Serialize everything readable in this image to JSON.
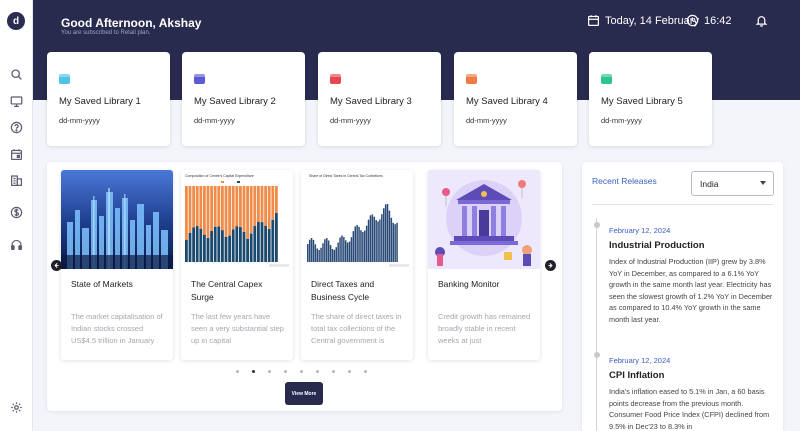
{
  "sidebar": {
    "logo": "d",
    "icons": [
      "search-icon",
      "monitor-icon",
      "help-icon",
      "calendar-icon",
      "building-icon",
      "dollar-icon",
      "headphones-icon",
      "settings-icon"
    ]
  },
  "header": {
    "greeting": "Good Afternoon, Akshay",
    "subtext": "You are subscribed to Retail plan.",
    "date": "Today, 14 February",
    "time": "16:42"
  },
  "libraries": [
    {
      "title": "My Saved Library 1",
      "date": "dd-mm-yyyy",
      "color": "#4fc3e8"
    },
    {
      "title": "My Saved Library 2",
      "date": "dd-mm-yyyy",
      "color": "#5b5bd6"
    },
    {
      "title": "My Saved Library 3",
      "date": "dd-mm-yyyy",
      "color": "#e8474f"
    },
    {
      "title": "My Saved Library 4",
      "date": "dd-mm-yyyy",
      "color": "#ef7a45"
    },
    {
      "title": "My Saved Library 5",
      "date": "dd-mm-yyyy",
      "color": "#2dc58a"
    }
  ],
  "carousel": {
    "articles": [
      {
        "title": "State of Markets",
        "desc": "The market capitalisation of Indian stocks crossed US$4.5 trillion in January"
      },
      {
        "title": "The Central Capex Surge",
        "desc": "The last few years have seen a very substantial step up in capital"
      },
      {
        "title": "Direct Taxes and Business Cycle",
        "desc": "The share of direct taxes in total tax collections of the Central government is"
      },
      {
        "title": "Banking Monitor",
        "desc": "Credit growth has remained broadly stable in recent weeks at just"
      }
    ],
    "thumb_titles": [
      "Composition of Centre's Capital Expenditure",
      "Share of Direct Taxes in Central Tax Collections"
    ],
    "active_dot": 1,
    "dot_count": 9,
    "view_more": "View More"
  },
  "releases": {
    "heading": "Recent Releases",
    "country": "India",
    "items": [
      {
        "date": "February 12, 2024",
        "title": "Industrial Production",
        "body": "Index of Industrial Production (IIP) grew by 3.8% YoY in December, as compared to a 6.1% YoY growth in the same month last year. Electricity has seen the slowest growth of 1.2% YoY in December as compared to 10.4% YoY growth in the same month last year."
      },
      {
        "date": "February 12, 2024",
        "title": "CPI Inflation",
        "body": "India's inflation eased to 5.1% in Jan, a 60 basis points decrease from the previous month. Consumer Food Price Index (CFPI) declined from 9.5% in Dec'23 to 8.3% in"
      }
    ]
  }
}
